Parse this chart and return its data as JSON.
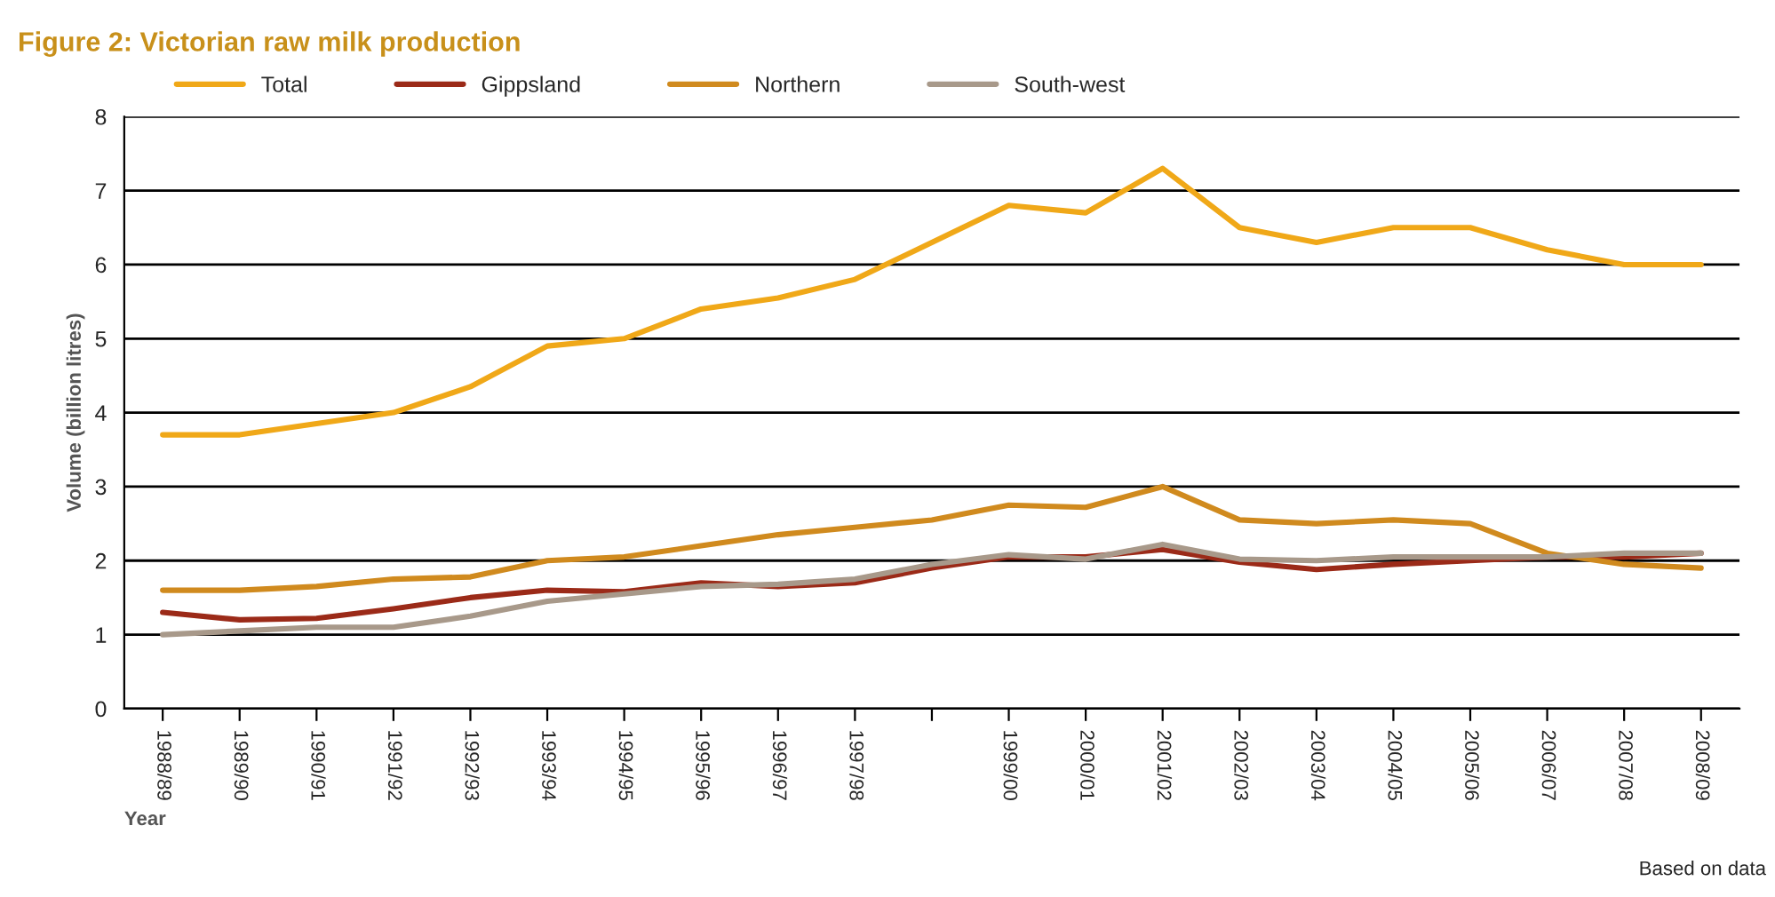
{
  "chart_data": {
    "type": "line",
    "title": "Figure 2: Victorian raw milk production",
    "xlabel": "Year",
    "ylabel": "Volume (billion litres)",
    "categories": [
      "1988/89",
      "1989/90",
      "1990/91",
      "1991/92",
      "1992/93",
      "1993/94",
      "1994/95",
      "1995/96",
      "1996/97",
      "1997/98",
      null,
      "1999/00",
      "2000/01",
      "2001/02",
      "2002/03",
      "2003/04",
      "2004/05",
      "2005/06",
      "2006/07",
      "2007/08",
      "2008/09"
    ],
    "series": [
      {
        "name": "Total",
        "color": "#f0a818",
        "values": [
          3.7,
          3.7,
          3.85,
          4.0,
          4.35,
          4.9,
          5.0,
          5.4,
          5.55,
          5.8,
          6.3,
          6.8,
          6.7,
          7.3,
          6.5,
          6.3,
          6.5,
          6.5,
          6.2,
          6.0,
          6.0
        ]
      },
      {
        "name": "Gippsland",
        "color": "#9b2a18",
        "values": [
          1.3,
          1.2,
          1.22,
          1.35,
          1.5,
          1.6,
          1.58,
          1.7,
          1.65,
          1.7,
          1.9,
          2.05,
          2.05,
          2.15,
          1.98,
          1.88,
          1.95,
          2.0,
          2.05,
          2.05,
          2.1
        ]
      },
      {
        "name": "Northern",
        "color": "#d08a1e",
        "values": [
          1.6,
          1.6,
          1.65,
          1.75,
          1.78,
          2.0,
          2.05,
          2.2,
          2.35,
          2.45,
          2.55,
          2.75,
          2.72,
          3.0,
          2.55,
          2.5,
          2.55,
          2.5,
          2.1,
          1.95,
          1.9
        ]
      },
      {
        "name": "South-west",
        "color": "#a8998a",
        "values": [
          1.0,
          1.05,
          1.1,
          1.1,
          1.25,
          1.45,
          1.55,
          1.65,
          1.68,
          1.75,
          1.95,
          2.08,
          2.02,
          2.22,
          2.02,
          2.0,
          2.05,
          2.05,
          2.05,
          2.1,
          2.1
        ]
      }
    ],
    "ylim": [
      0,
      8
    ],
    "yticks": [
      0,
      1,
      2,
      3,
      4,
      5,
      6,
      7,
      8
    ],
    "grid": "y",
    "legend": "top left",
    "marker": "none",
    "line_style": "solid",
    "annotations": [
      "Based on data"
    ]
  }
}
